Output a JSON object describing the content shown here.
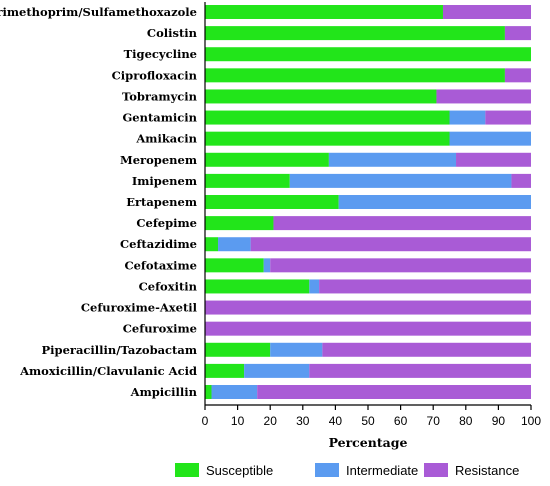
{
  "chart_data": {
    "type": "bar",
    "orientation": "horizontal",
    "stacked": true,
    "categories": [
      "Trimethoprim/Sulfamethoxazole",
      "Colistin",
      "Tigecycline",
      "Ciprofloxacin",
      "Tobramycin",
      "Gentamicin",
      "Amikacin",
      "Meropenem",
      "Imipenem",
      "Ertapenem",
      "Cefepime",
      "Ceftazidime",
      "Cefotaxime",
      "Cefoxitin",
      "Cefuroxime-Axetil",
      "Cefuroxime",
      "Piperacillin/Tazobactam",
      "Amoxicillin/Clavulanic Acid",
      "Ampicillin"
    ],
    "series": [
      {
        "name": "Susceptible",
        "color": "#22e51a",
        "values": [
          73,
          92,
          100,
          92,
          71,
          75,
          75,
          38,
          26,
          41,
          21,
          4,
          18,
          32,
          0,
          0,
          20,
          12,
          2
        ]
      },
      {
        "name": "Intermediate",
        "color": "#5b9bf0",
        "values": [
          0,
          0,
          0,
          0,
          0,
          11,
          25,
          39,
          68,
          59,
          0,
          10,
          2,
          3,
          0,
          0,
          16,
          20,
          14
        ]
      },
      {
        "name": "Resistance",
        "color": "#a95bd6",
        "values": [
          27,
          8,
          0,
          8,
          29,
          14,
          0,
          23,
          6,
          0,
          79,
          86,
          80,
          65,
          100,
          100,
          64,
          68,
          84
        ]
      }
    ],
    "xlabel": "Percentage",
    "ylabel": "",
    "xlim": [
      0,
      100
    ],
    "xticks": [
      "0",
      "10",
      "20",
      "30",
      "40",
      "50",
      "60",
      "70",
      "80",
      "90",
      "100"
    ],
    "legend": {
      "position": "bottom",
      "entries": [
        "Susceptible",
        "Intermediate",
        "Resistance"
      ]
    },
    "grid": false
  }
}
